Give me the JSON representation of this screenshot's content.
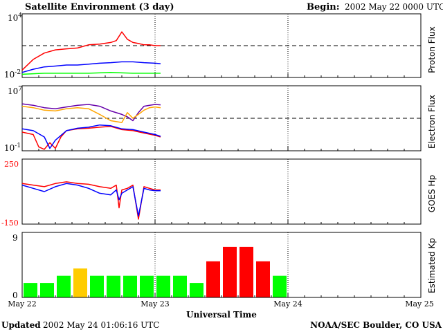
{
  "header": {
    "title": "Satellite Environment (3 day)",
    "begin_label": "Begin:",
    "begin_value": "2002 May 22 0000 UTC"
  },
  "footer": {
    "updated_label": "Updated",
    "updated_value": "2002 May 24 01:06:16 UTC",
    "credit": "NOAA/SEC Boulder, CO USA"
  },
  "x_axis": {
    "title": "Universal Time",
    "ticks": [
      "May 22",
      "May 23",
      "May 24",
      "May 25"
    ],
    "range_hours": [
      0,
      72
    ],
    "current_time_hours": 25.1
  },
  "colors": {
    "red": "#ff0000",
    "blue": "#0000ff",
    "green": "#00ff00",
    "purple": "#6600aa",
    "orange": "#ffa500",
    "kp_green": "#00ff00",
    "kp_yellow": "#ffcc00",
    "kp_red": "#ff0000"
  },
  "chart_data": [
    {
      "type": "line",
      "panel": "proton",
      "ylabel": "Proton Flux",
      "yscale": "log",
      "ylim": [
        0.01,
        10000
      ],
      "ytick_labels": {
        "top": "10",
        "top_exp": "4",
        "bottom": "10",
        "bottom_exp": "-2"
      },
      "threshold": 10,
      "series": [
        {
          "color": "red",
          "x": [
            0,
            2,
            4,
            6,
            8,
            10,
            12,
            14,
            16,
            17,
            18,
            19,
            20,
            21,
            22,
            23,
            24,
            25
          ],
          "y": [
            0.05,
            0.5,
            2,
            4,
            5,
            6,
            12,
            14,
            20,
            30,
            200,
            40,
            20,
            16,
            12,
            12,
            10,
            10
          ]
        },
        {
          "color": "blue",
          "x": [
            0,
            2,
            4,
            6,
            8,
            10,
            12,
            14,
            16,
            18,
            20,
            22,
            24,
            25
          ],
          "y": [
            0.03,
            0.06,
            0.1,
            0.12,
            0.15,
            0.15,
            0.18,
            0.22,
            0.25,
            0.3,
            0.3,
            0.25,
            0.22,
            0.2
          ]
        },
        {
          "color": "green",
          "x": [
            0,
            4,
            8,
            12,
            16,
            20,
            25
          ],
          "y": [
            0.02,
            0.025,
            0.025,
            0.025,
            0.03,
            0.025,
            0.025
          ]
        }
      ]
    },
    {
      "type": "line",
      "panel": "electron",
      "ylabel": "Electron Flux",
      "yscale": "log",
      "ylim": [
        0.1,
        10000000
      ],
      "ytick_labels": {
        "top": "10",
        "top_exp": "7",
        "bottom": "10",
        "bottom_exp": "-1"
      },
      "threshold": 1000,
      "series": [
        {
          "color": "purple",
          "x": [
            0,
            2,
            4,
            6,
            8,
            10,
            12,
            14,
            16,
            18,
            19,
            20,
            21,
            22,
            23,
            24,
            25
          ],
          "y": [
            60000,
            40000,
            20000,
            15000,
            25000,
            40000,
            50000,
            30000,
            8000,
            3000,
            1500,
            500,
            5000,
            30000,
            40000,
            50000,
            45000
          ]
        },
        {
          "color": "orange",
          "x": [
            0,
            2,
            4,
            6,
            8,
            10,
            12,
            14,
            16,
            18,
            19,
            20,
            21,
            22,
            23,
            24,
            25
          ],
          "y": [
            30000,
            20000,
            10000,
            8000,
            15000,
            20000,
            15000,
            3000,
            500,
            300,
            5000,
            1000,
            3000,
            10000,
            20000,
            25000,
            20000
          ]
        },
        {
          "color": "red",
          "x": [
            0,
            2,
            3,
            4,
            5,
            6,
            7,
            8,
            10,
            12,
            14,
            16,
            18,
            20,
            22,
            24,
            25
          ],
          "y": [
            20,
            10,
            0.3,
            0.15,
            1,
            0.2,
            5,
            30,
            50,
            60,
            80,
            100,
            40,
            30,
            15,
            8,
            5
          ]
        },
        {
          "color": "blue",
          "x": [
            0,
            2,
            4,
            5,
            6,
            8,
            10,
            12,
            14,
            16,
            18,
            20,
            22,
            24,
            25
          ],
          "y": [
            50,
            30,
            5,
            0.2,
            2,
            30,
            60,
            80,
            150,
            120,
            50,
            40,
            20,
            10,
            6
          ]
        }
      ]
    },
    {
      "type": "line",
      "panel": "goes_hp",
      "ylabel": "GOES Hp",
      "ylim": [
        -150,
        250
      ],
      "ytick_labels": {
        "top": "250",
        "bottom": "-150"
      },
      "series": [
        {
          "color": "red",
          "x": [
            0,
            2,
            4,
            6,
            8,
            10,
            12,
            14,
            16,
            17,
            17.5,
            18,
            19,
            20,
            21,
            22,
            23,
            24,
            25
          ],
          "y": [
            100,
            90,
            80,
            100,
            110,
            100,
            95,
            80,
            70,
            90,
            -50,
            60,
            70,
            90,
            -120,
            80,
            70,
            60,
            60
          ]
        },
        {
          "color": "blue",
          "x": [
            0,
            2,
            4,
            6,
            8,
            10,
            12,
            14,
            16,
            17,
            17.5,
            18,
            19,
            20,
            21,
            22,
            23,
            24,
            25
          ],
          "y": [
            90,
            70,
            50,
            80,
            100,
            90,
            70,
            40,
            30,
            60,
            0,
            40,
            60,
            80,
            -100,
            70,
            60,
            55,
            55
          ]
        }
      ]
    },
    {
      "type": "bar",
      "panel": "kp",
      "ylabel": "Estimated Kp",
      "ylim": [
        0,
        9
      ],
      "ytick_labels": {
        "top": "9",
        "bottom": "0"
      },
      "x_start_hours": [
        0,
        3,
        6,
        9,
        12,
        15,
        18,
        21,
        24,
        27,
        30,
        33,
        36,
        39,
        42,
        45,
        48
      ],
      "values": [
        2,
        2,
        3,
        4,
        3,
        3,
        3,
        3,
        3,
        3,
        2,
        5,
        7,
        7,
        5,
        3,
        0
      ],
      "bar_colors": [
        "kp_green",
        "kp_green",
        "kp_green",
        "kp_yellow",
        "kp_green",
        "kp_green",
        "kp_green",
        "kp_green",
        "kp_green",
        "kp_green",
        "kp_green",
        "kp_red",
        "kp_red",
        "kp_red",
        "kp_red",
        "kp_green",
        "kp_green"
      ]
    }
  ]
}
